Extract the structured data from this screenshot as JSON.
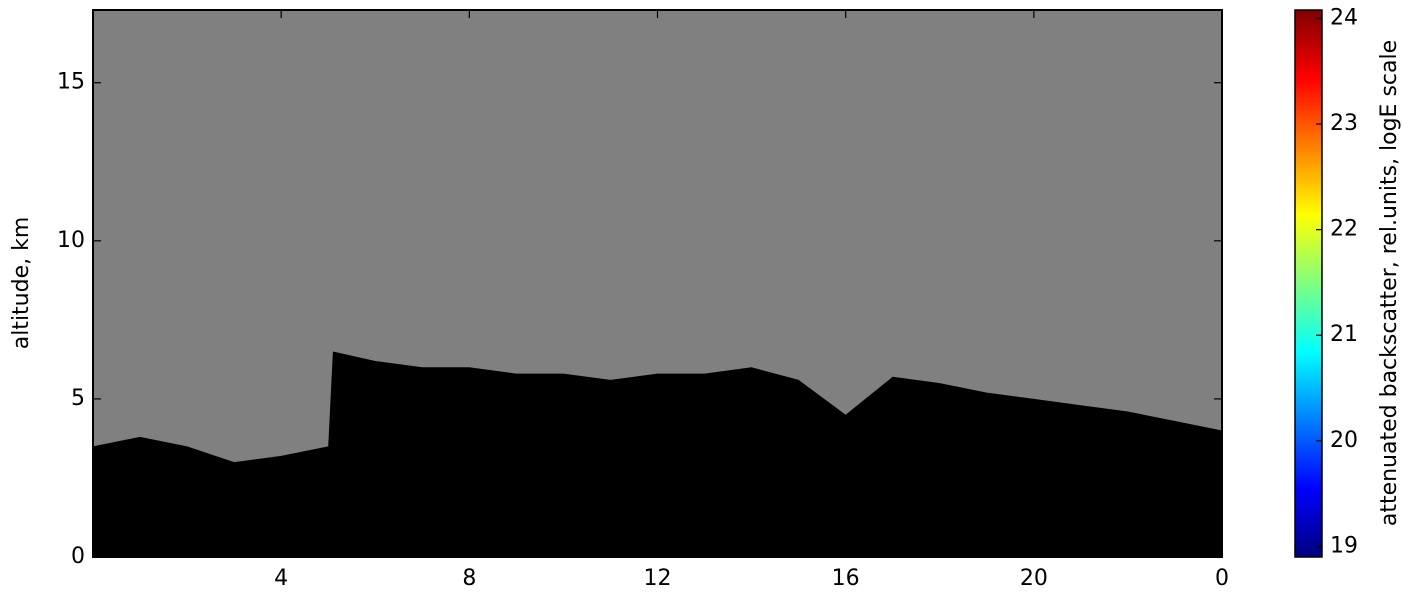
{
  "chart_data": {
    "type": "area",
    "ylabel": "altitude, km",
    "x": [
      0,
      1,
      2,
      3,
      4,
      5,
      5.1,
      6,
      7,
      8,
      9,
      10,
      11,
      12,
      13,
      14,
      15,
      16,
      17,
      18,
      19,
      20,
      21,
      22,
      23,
      24
    ],
    "values": [
      3.5,
      3.8,
      3.5,
      3,
      3.2,
      3.5,
      6.5,
      6.2,
      6,
      6,
      5.8,
      5.8,
      5.6,
      5.8,
      5.8,
      6,
      5.6,
      4.5,
      5.7,
      5.5,
      5.2,
      5,
      4.8,
      4.6,
      4.3,
      4
    ],
    "color": "#000000",
    "background": "#808080",
    "xlim": [
      0,
      24
    ],
    "xticks": [
      4,
      8,
      12,
      16,
      20,
      {
        "value": 24,
        "label": "0"
      }
    ],
    "ylim": [
      0,
      17.3
    ],
    "yticks": [
      0,
      5,
      10,
      15
    ],
    "colorbar": {
      "label": "attenuated backscatter, rel.units, logE scale",
      "colormap": "jet",
      "lim": [
        18.9,
        24.08
      ],
      "ticks": [
        19,
        20,
        21,
        22,
        23,
        24
      ]
    }
  }
}
